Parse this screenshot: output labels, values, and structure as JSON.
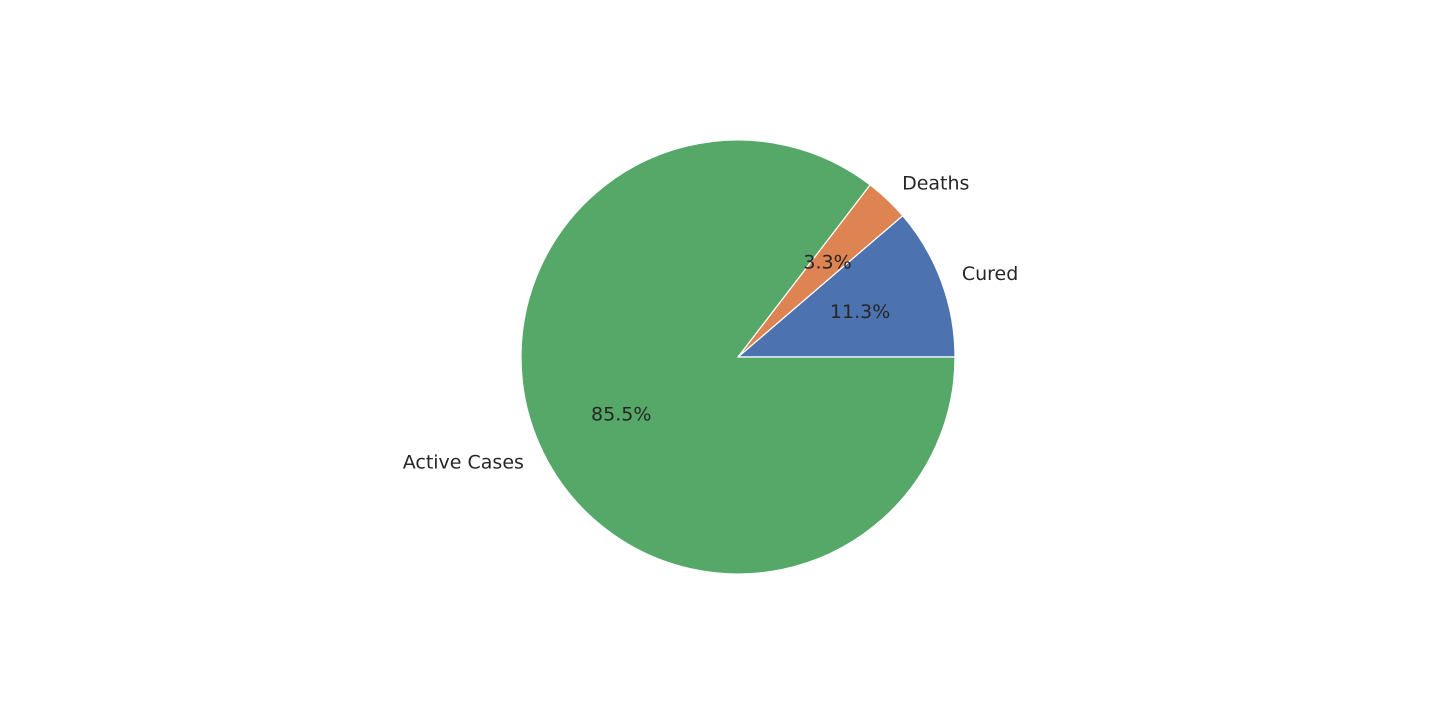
{
  "chart_data": {
    "type": "pie",
    "title": "",
    "categories": [
      "Cured",
      "Deaths",
      "Active Cases"
    ],
    "values": [
      11.3,
      3.3,
      85.5
    ],
    "percent_labels": [
      "11.3%",
      "3.3%",
      "85.5%"
    ],
    "colors": [
      "#4c72b0",
      "#dd8452",
      "#55a868"
    ],
    "start_angle_deg": 0,
    "direction": "counterclockwise",
    "legend": "none"
  }
}
